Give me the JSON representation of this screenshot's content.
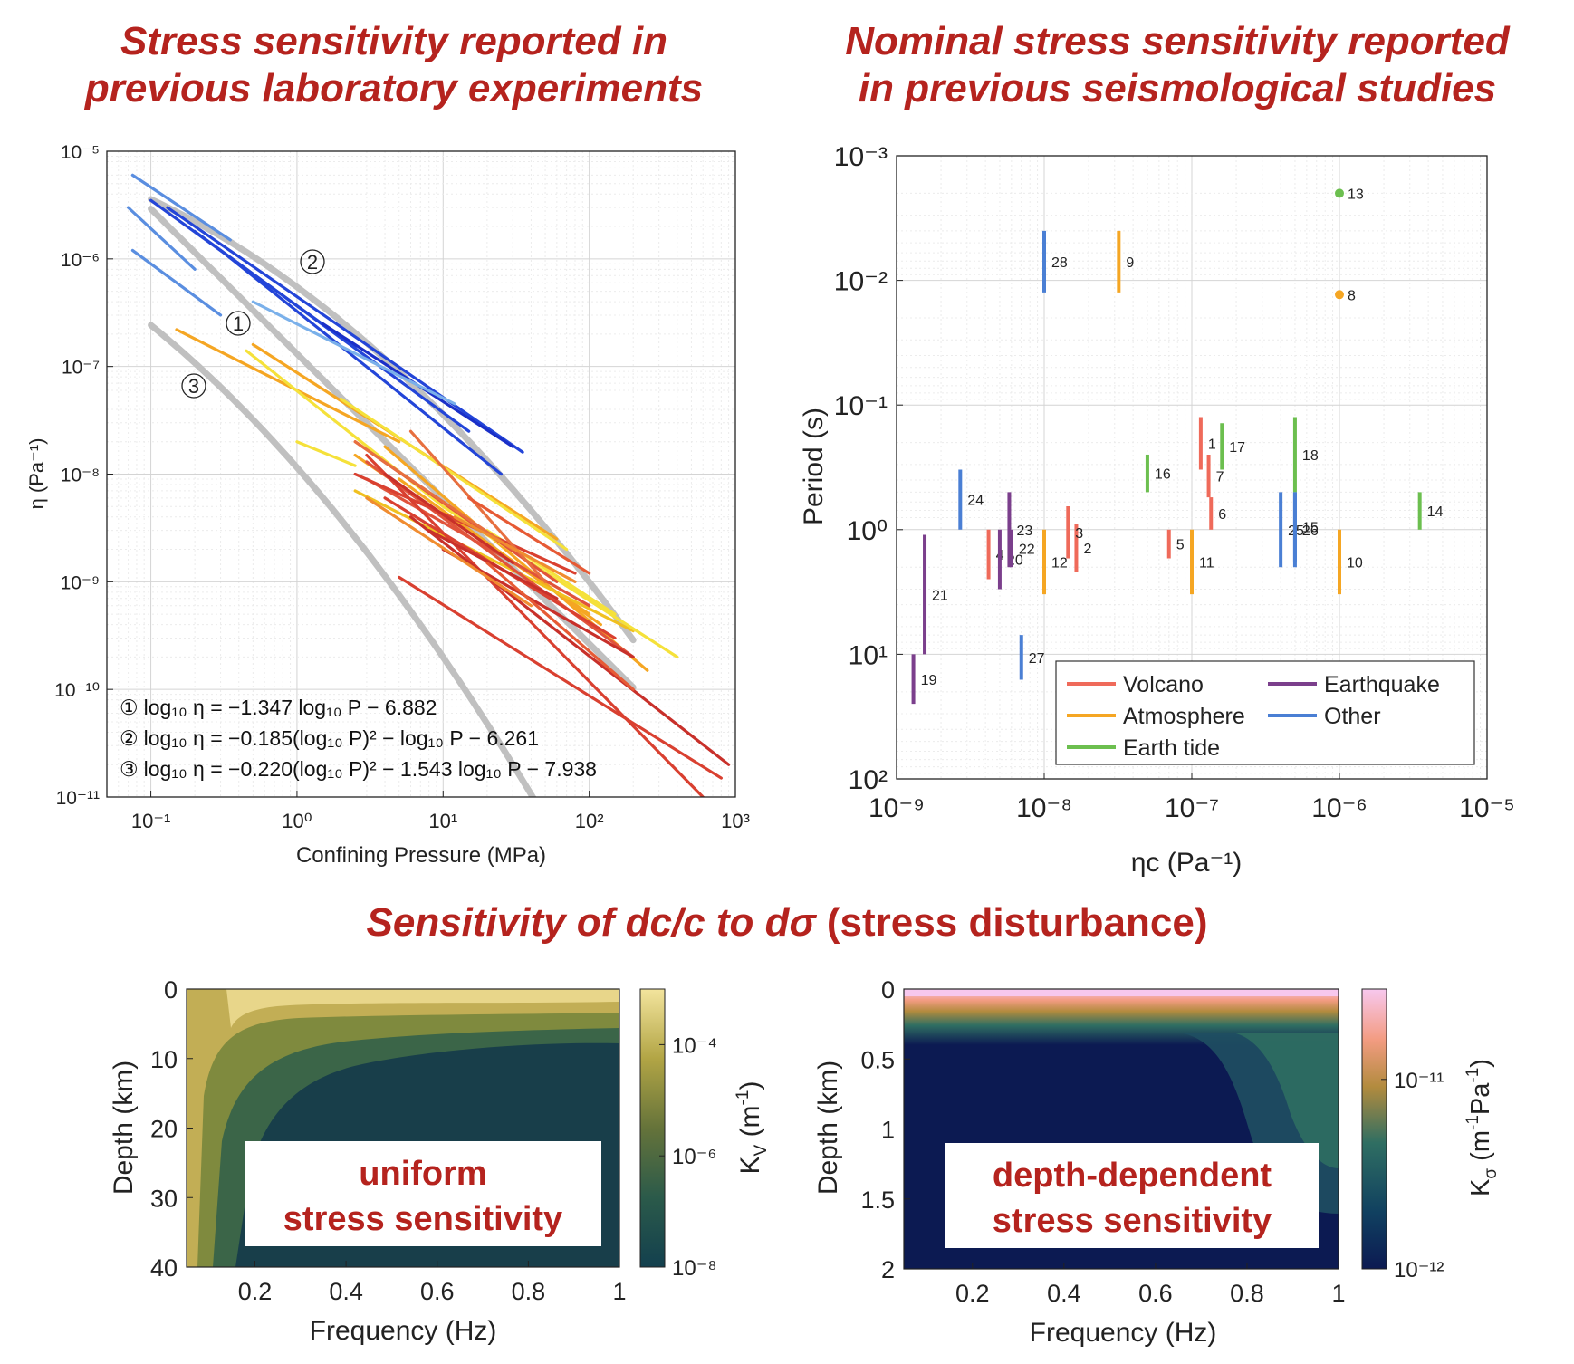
{
  "titles": {
    "top_left_line1": "Stress sensitivity reported in",
    "top_left_line2": "previous laboratory experiments",
    "top_right_line1": "Nominal stress sensitivity reported",
    "top_right_line2": "in previous seismological studies",
    "bottom_italic": "Sensitivity of dc/c to dσ",
    "bottom_upright": "(stress disturbance)"
  },
  "colors": {
    "title_red": "#b5231e",
    "volcano": "#ef6a5a",
    "atmosphere": "#f5a623",
    "earth_tide": "#6cbf4f",
    "earthquake": "#7b3f8c",
    "other": "#4a7fd4",
    "envelope_gray": "#c0c0c0"
  },
  "chart_data": [
    {
      "id": "lab",
      "type": "line",
      "xscale": "log",
      "yscale": "log",
      "xlim": [
        0.05,
        1000
      ],
      "ylim": [
        1e-11,
        1e-05
      ],
      "xlabel": "Confining Pressure (MPa)",
      "ylabel": "η (Pa⁻¹)",
      "xticks": [
        "10⁻¹",
        "10⁰",
        "10¹",
        "10²",
        "10³"
      ],
      "yticks": [
        "10⁻¹¹",
        "10⁻¹⁰",
        "10⁻⁹",
        "10⁻⁸",
        "10⁻⁷",
        "10⁻⁶",
        "10⁻⁵"
      ],
      "grid": true,
      "envelopes": [
        {
          "label": "①",
          "equation": "log₁₀ η = −1.347 log₁₀ P − 6.882",
          "a": 0,
          "b": -1.347,
          "c": -6.882,
          "x_range": [
            0.1,
            200
          ]
        },
        {
          "label": "②",
          "equation": "log₁₀ η = −0.185(log₁₀ P)² − log₁₀ P − 6.261",
          "a": -0.185,
          "b": -1,
          "c": -6.261,
          "x_range": [
            0.1,
            200
          ]
        },
        {
          "label": "③",
          "equation": "log₁₀ η = −0.220(log₁₀ P)² − 1.543 log₁₀ P − 7.938",
          "a": -0.22,
          "b": -1.543,
          "c": -7.938,
          "x_range": [
            0.1,
            200
          ]
        }
      ],
      "series": [
        {
          "color": "#2345d8",
          "values": [
            [
              0.1,
              3.5e-06
            ],
            [
              2.5,
              1.5e-07
            ]
          ]
        },
        {
          "color": "#2345d8",
          "values": [
            [
              0.3,
              1.2e-06
            ],
            [
              25,
              1e-08
            ]
          ]
        },
        {
          "color": "#2345d8",
          "values": [
            [
              0.13,
              3e-06
            ],
            [
              35,
              1.6e-08
            ]
          ]
        },
        {
          "color": "#2345d8",
          "values": [
            [
              0.2,
              1.8e-06
            ],
            [
              15,
              2.5e-08
            ]
          ]
        },
        {
          "color": "#1a2fc8",
          "values": [
            [
              1.5,
              2.5e-07
            ],
            [
              30,
              1.8e-08
            ]
          ]
        },
        {
          "color": "#5a8ee0",
          "values": [
            [
              0.075,
              6e-06
            ],
            [
              0.35,
              1.5e-06
            ]
          ]
        },
        {
          "color": "#5a8ee0",
          "values": [
            [
              0.07,
              3e-06
            ],
            [
              0.2,
              8e-07
            ]
          ]
        },
        {
          "color": "#5a8ee0",
          "values": [
            [
              0.075,
              1.2e-06
            ],
            [
              0.3,
              3e-07
            ]
          ]
        },
        {
          "color": "#7ab0ea",
          "values": [
            [
              0.5,
              4e-07
            ],
            [
              12,
              4.5e-08
            ]
          ]
        },
        {
          "color": "#f5a623",
          "values": [
            [
              0.15,
              2.2e-07
            ],
            [
              5,
              2e-08
            ]
          ]
        },
        {
          "color": "#f5a623",
          "values": [
            [
              0.5,
              1.6e-07
            ],
            [
              60,
              2.5e-09
            ]
          ]
        },
        {
          "color": "#f5a623",
          "values": [
            [
              2.5,
              1.5e-08
            ],
            [
              100,
              5e-10
            ]
          ]
        },
        {
          "color": "#f5a623",
          "values": [
            [
              4,
              1.8e-08
            ],
            [
              250,
              1.5e-10
            ]
          ]
        },
        {
          "color": "#f5a623",
          "values": [
            [
              5,
              9e-09
            ],
            [
              120,
              4e-10
            ]
          ]
        },
        {
          "color": "#f0c020",
          "values": [
            [
              2.5,
              7e-09
            ],
            [
              200,
              3.5e-10
            ]
          ]
        },
        {
          "color": "#f5e13a",
          "values": [
            [
              0.45,
              1.4e-07
            ],
            [
              10,
              5e-09
            ]
          ]
        },
        {
          "color": "#f5e13a",
          "values": [
            [
              1,
              2e-08
            ],
            [
              2.5,
              1.2e-08
            ]
          ]
        },
        {
          "color": "#f5e13a",
          "values": [
            [
              2,
              5e-08
            ],
            [
              70,
              2e-09
            ]
          ]
        },
        {
          "color": "#f5e13a",
          "values": [
            [
              10,
              5e-09
            ],
            [
              400,
              2e-10
            ]
          ]
        },
        {
          "color": "#f5e13a",
          "values": [
            [
              20,
              3e-09
            ],
            [
              150,
              5e-10
            ]
          ]
        },
        {
          "color": "#e0533b",
          "values": [
            [
              2.5,
              2e-08
            ],
            [
              60,
              1e-09
            ]
          ]
        },
        {
          "color": "#e0533b",
          "values": [
            [
              3,
              1.3e-08
            ],
            [
              200,
              2e-10
            ]
          ]
        },
        {
          "color": "#e0533b",
          "values": [
            [
              3,
              9e-09
            ],
            [
              100,
              6e-10
            ]
          ]
        },
        {
          "color": "#d94030",
          "values": [
            [
              2.5,
              1e-08
            ],
            [
              80,
              1.2e-09
            ]
          ]
        },
        {
          "color": "#d94030",
          "values": [
            [
              4,
              6e-09
            ],
            [
              150,
              3e-10
            ]
          ]
        },
        {
          "color": "#d94030",
          "values": [
            [
              5,
              1.1e-09
            ],
            [
              800,
              1.5e-11
            ]
          ]
        },
        {
          "color": "#d94030",
          "values": [
            [
              3,
              1.5e-08
            ],
            [
              600,
              1e-11
            ]
          ]
        },
        {
          "color": "#c8302a",
          "values": [
            [
              6,
              4e-09
            ],
            [
              900,
              2e-11
            ]
          ]
        },
        {
          "color": "#c8302a",
          "values": [
            [
              10,
              2e-09
            ],
            [
              200,
              2e-10
            ]
          ]
        },
        {
          "color": "#c8302a",
          "values": [
            [
              8,
              3e-09
            ],
            [
              60,
              7e-10
            ]
          ]
        },
        {
          "color": "#c8302a",
          "values": [
            [
              4,
              1e-08
            ],
            [
              30,
              1.5e-09
            ]
          ]
        },
        {
          "color": "#e76f3f",
          "values": [
            [
              6,
              2.5e-08
            ],
            [
              50,
              1e-09
            ]
          ]
        },
        {
          "color": "#e76f3f",
          "values": [
            [
              2.5,
              2e-08
            ],
            [
              30,
              2e-09
            ]
          ]
        },
        {
          "color": "#f08c30",
          "values": [
            [
              12,
              4e-09
            ],
            [
              80,
              1e-09
            ]
          ]
        },
        {
          "color": "#f08c30",
          "values": [
            [
              3,
              6e-09
            ],
            [
              40,
              6e-10
            ]
          ]
        },
        {
          "color": "#e65a35",
          "values": [
            [
              15,
              6e-09
            ],
            [
              100,
              1.2e-09
            ]
          ]
        },
        {
          "color": "#e65a35",
          "values": [
            [
              20,
              1.5e-09
            ],
            [
              200,
              1e-10
            ]
          ]
        }
      ]
    },
    {
      "id": "seismo",
      "type": "scatter",
      "xscale": "log",
      "yscale": "log",
      "y_reversed": true,
      "xlim": [
        1e-09,
        1e-05
      ],
      "ylim": [
        0.001,
        100
      ],
      "xlabel": "ηc (Pa⁻¹)",
      "ylabel": "Period (s)",
      "xticks": [
        "10⁻⁹",
        "10⁻⁸",
        "10⁻⁷",
        "10⁻⁶",
        "10⁻⁵"
      ],
      "yticks": [
        "10⁻³",
        "10⁻²",
        "10⁻¹",
        "10⁰",
        "10¹",
        "10²"
      ],
      "grid": true,
      "legend_position": "bottom-right",
      "legend": [
        {
          "name": "Volcano",
          "color": "#ef6a5a"
        },
        {
          "name": "Earthquake",
          "color": "#7b3f8c"
        },
        {
          "name": "Atmosphere",
          "color": "#f5a623"
        },
        {
          "name": "Other",
          "color": "#4a7fd4"
        },
        {
          "name": "Earth tide",
          "color": "#6cbf4f"
        }
      ],
      "bars": [
        {
          "id": "1",
          "cat": "volcano",
          "x": 1.15e-07,
          "p": [
            0.125,
            0.33
          ]
        },
        {
          "id": "2",
          "cat": "volcano",
          "x": 1.65e-08,
          "p": [
            0.9,
            2.2
          ]
        },
        {
          "id": "3",
          "cat": "volcano",
          "x": 1.45e-08,
          "p": [
            0.65,
            1.7
          ]
        },
        {
          "id": "4",
          "cat": "volcano",
          "x": 4.2e-09,
          "p": [
            1.0,
            2.5
          ]
        },
        {
          "id": "5",
          "cat": "volcano",
          "x": 7e-08,
          "p": [
            1.0,
            1.7
          ]
        },
        {
          "id": "6",
          "cat": "volcano",
          "x": 1.35e-07,
          "p": [
            0.55,
            1.0
          ]
        },
        {
          "id": "7",
          "cat": "volcano",
          "x": 1.3e-07,
          "p": [
            0.25,
            0.55
          ]
        },
        {
          "id": "8",
          "cat": "atmosphere",
          "x": 1e-06,
          "p": [
            0.013,
            0.013
          ],
          "dot": true
        },
        {
          "id": "9",
          "cat": "atmosphere",
          "x": 3.2e-08,
          "p": [
            0.004,
            0.0125
          ]
        },
        {
          "id": "10",
          "cat": "atmosphere",
          "x": 1e-06,
          "p": [
            1.0,
            3.3
          ]
        },
        {
          "id": "11",
          "cat": "atmosphere",
          "x": 1e-07,
          "p": [
            1.0,
            3.3
          ]
        },
        {
          "id": "12",
          "cat": "atmosphere",
          "x": 1e-08,
          "p": [
            1.0,
            3.3
          ]
        },
        {
          "id": "13",
          "cat": "earth_tide",
          "x": 1e-06,
          "p": [
            0.002,
            0.002
          ],
          "dot": true
        },
        {
          "id": "14",
          "cat": "earth_tide",
          "x": 3.5e-06,
          "p": [
            0.5,
            1.0
          ]
        },
        {
          "id": "15",
          "cat": "other",
          "x": 5e-07,
          "p": [
            0.5,
            1.8
          ]
        },
        {
          "id": "16",
          "cat": "earth_tide",
          "x": 5e-08,
          "p": [
            0.25,
            0.5
          ]
        },
        {
          "id": "17",
          "cat": "earth_tide",
          "x": 1.6e-07,
          "p": [
            0.14,
            0.33
          ]
        },
        {
          "id": "18",
          "cat": "earth_tide",
          "x": 5e-07,
          "p": [
            0.125,
            0.5
          ]
        },
        {
          "id": "19",
          "cat": "earthquake",
          "x": 1.3e-09,
          "p": [
            10,
            25
          ]
        },
        {
          "id": "20",
          "cat": "earthquake",
          "x": 5e-09,
          "p": [
            1.0,
            3.0
          ]
        },
        {
          "id": "21",
          "cat": "earthquake",
          "x": 1.55e-09,
          "p": [
            1.1,
            10
          ]
        },
        {
          "id": "22",
          "cat": "earthquake",
          "x": 6e-09,
          "p": [
            1.0,
            2.0
          ]
        },
        {
          "id": "23",
          "cat": "earthquake",
          "x": 5.8e-09,
          "p": [
            0.5,
            2.0
          ]
        },
        {
          "id": "24",
          "cat": "other",
          "x": 2.7e-09,
          "p": [
            0.33,
            1.0
          ]
        },
        {
          "id": "25",
          "cat": "other",
          "x": 4e-07,
          "p": [
            0.5,
            2.0
          ]
        },
        {
          "id": "26",
          "cat": "other",
          "x": 5e-07,
          "p": [
            0.5,
            2.0
          ]
        },
        {
          "id": "27",
          "cat": "other",
          "x": 7e-09,
          "p": [
            7.0,
            16
          ]
        },
        {
          "id": "28",
          "cat": "other",
          "x": 1e-08,
          "p": [
            0.004,
            0.0125
          ]
        }
      ]
    },
    {
      "id": "uniform",
      "type": "heatmap",
      "xlabel": "Frequency (Hz)",
      "ylabel": "Depth (km)",
      "xlim": [
        0.05,
        1
      ],
      "ylim": [
        0,
        40
      ],
      "y_reversed": true,
      "xticks": [
        "0.2",
        "0.4",
        "0.6",
        "0.8",
        "1"
      ],
      "yticks": [
        "0",
        "10",
        "20",
        "30",
        "40"
      ],
      "colorbar_label": "K",
      "colorbar_sub": "V",
      "colorbar_unit": " (m",
      "colorbar_unit_sup": "-1",
      "colorbar_unit_end": ")",
      "colorbar_ticks": [
        "10⁻⁴",
        "10⁻⁶",
        "10⁻⁸"
      ],
      "colorbar_range": [
        1e-08,
        0.001
      ],
      "annotation_line1": "uniform",
      "annotation_line2": "stress sensitivity"
    },
    {
      "id": "depthdep",
      "type": "heatmap",
      "xlabel": "Frequency (Hz)",
      "ylabel": "Depth (km)",
      "xlim": [
        0.05,
        1
      ],
      "ylim": [
        0,
        2
      ],
      "y_reversed": true,
      "xticks": [
        "0.2",
        "0.4",
        "0.6",
        "0.8",
        "1"
      ],
      "yticks": [
        "0",
        "0.5",
        "1",
        "1.5",
        "2"
      ],
      "colorbar_label": "K",
      "colorbar_sub": "σ",
      "colorbar_unit": " (m",
      "colorbar_unit_sup": "-1",
      "colorbar_unit_mid": "Pa",
      "colorbar_unit_sup2": "-1",
      "colorbar_unit_end": ")",
      "colorbar_ticks": [
        "10⁻¹¹",
        "10⁻¹²"
      ],
      "colorbar_range": [
        1e-12,
        3e-11
      ],
      "annotation_line1": "depth-dependent",
      "annotation_line2": "stress sensitivity"
    }
  ]
}
